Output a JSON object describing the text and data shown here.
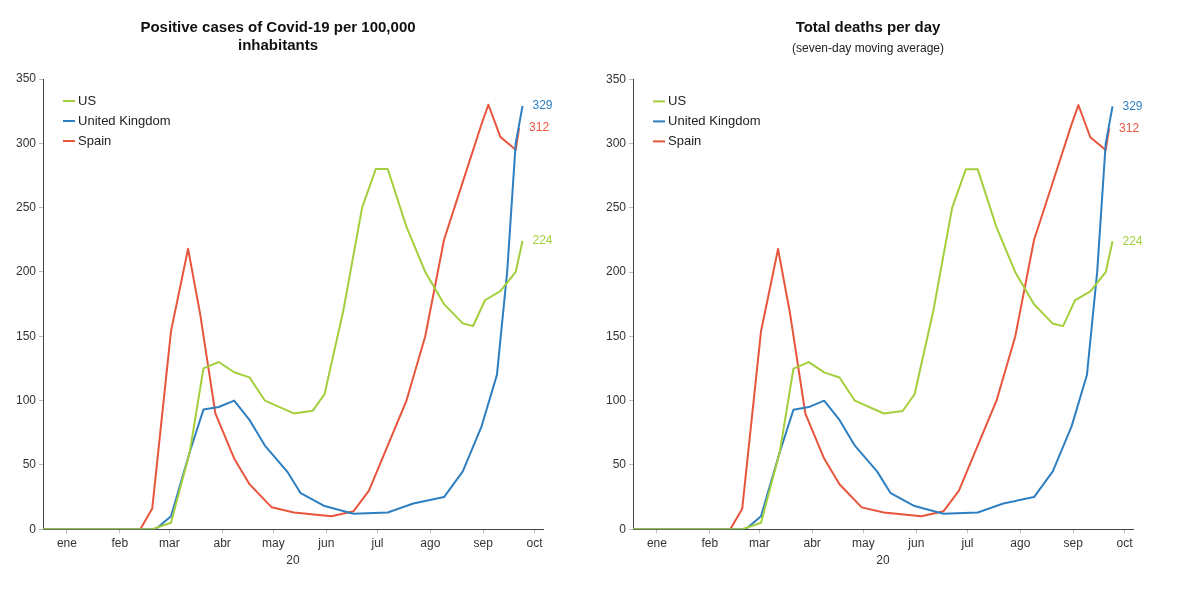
{
  "chart_data": [
    {
      "type": "line",
      "title": "Positive cases of Covid-19 per 100,000 inhabitants",
      "xlabel": "20",
      "xlim": [
        "--01-01",
        "--10-20"
      ],
      "xticks": [
        {
          "value": "--01-15",
          "label": "ene"
        },
        {
          "value": "--02-15",
          "label": "feb"
        },
        {
          "value": "--03-15",
          "label": "mar"
        },
        {
          "value": "--04-15",
          "label": "abr"
        },
        {
          "value": "--05-15",
          "label": "may"
        },
        {
          "value": "--06-15",
          "label": "jun"
        },
        {
          "value": "--07-15",
          "label": "jul"
        },
        {
          "value": "--08-15",
          "label": "ago"
        },
        {
          "value": "--09-15",
          "label": "sep"
        },
        {
          "value": "--10-15",
          "label": "oct"
        }
      ],
      "ylim": [
        0,
        350
      ],
      "yticks": [
        0,
        50,
        100,
        150,
        200,
        250,
        300,
        350
      ],
      "grid": false,
      "legend": "top left",
      "marker": "none",
      "line_style": "solid",
      "series": [
        {
          "name": "US",
          "color": "#a3cf3c",
          "x": [
            "--01-01",
            "--03-05",
            "--03-16",
            "--03-27",
            "--04-04",
            "--04-13",
            "--04-22",
            "--05-01",
            "--05-10",
            "--05-27",
            "--06-07",
            "--06-14",
            "--06-25",
            "--07-06",
            "--07-14",
            "--07-21",
            "--08-01",
            "--08-12",
            "--08-23",
            "--09-03",
            "--09-09",
            "--09-16",
            "--09-25",
            "--10-04",
            "--10-08"
          ],
          "values": [
            0,
            0,
            5,
            60,
            125,
            130,
            122,
            118,
            100,
            90,
            92,
            105,
            170,
            250,
            280,
            280,
            235,
            200,
            175,
            160,
            158,
            178,
            185,
            200,
            224
          ],
          "value_labels": [
            null,
            null,
            null,
            null,
            null,
            null,
            null,
            null,
            null,
            null,
            null,
            null,
            null,
            null,
            null,
            null,
            null,
            null,
            null,
            null,
            null,
            null,
            null,
            null,
            "224"
          ]
        },
        {
          "name": "United Kingdom",
          "color": "#2e7fc1",
          "x": [
            "--01-01",
            "--03-07",
            "--03-16",
            "--03-27",
            "--04-04",
            "--04-13",
            "--04-22",
            "--05-01",
            "--05-10",
            "--05-23",
            "--05-31",
            "--06-14",
            "--07-01",
            "--07-21",
            "--08-05",
            "--08-23",
            "--09-03",
            "--09-14",
            "--09-23",
            "--09-29",
            "--10-04",
            "--10-08"
          ],
          "values": [
            0,
            0,
            10,
            60,
            93,
            95,
            100,
            85,
            65,
            45,
            28,
            18,
            12,
            13,
            20,
            25,
            45,
            80,
            120,
            200,
            300,
            329
          ],
          "value_labels": [
            null,
            null,
            null,
            null,
            null,
            null,
            null,
            null,
            null,
            null,
            null,
            null,
            null,
            null,
            null,
            null,
            null,
            null,
            null,
            null,
            null,
            "329"
          ]
        },
        {
          "name": "Spain",
          "color": "#e8553d",
          "x": [
            "--01-01",
            "--02-27",
            "--03-05",
            "--03-16",
            "--03-26",
            "--04-02",
            "--04-11",
            "--04-22",
            "--05-01",
            "--05-14",
            "--05-27",
            "--06-18",
            "--07-01",
            "--07-10",
            "--07-21",
            "--08-01",
            "--08-12",
            "--08-23",
            "--09-03",
            "--09-14",
            "--09-18",
            "--09-25",
            "--10-04",
            "--10-06"
          ],
          "values": [
            0,
            0,
            16,
            154,
            218,
            168,
            90,
            55,
            35,
            17,
            13,
            10,
            14,
            30,
            65,
            100,
            150,
            225,
            270,
            315,
            330,
            305,
            295,
            312
          ],
          "value_labels": [
            null,
            null,
            null,
            null,
            null,
            null,
            null,
            null,
            null,
            null,
            null,
            null,
            null,
            null,
            null,
            null,
            null,
            null,
            null,
            null,
            null,
            null,
            null,
            "312"
          ]
        }
      ]
    },
    {
      "type": "line",
      "title": "Total deaths per day",
      "subtitle": "(seven-day moving average)",
      "xlabel": "20",
      "xlim": [
        "--01-01",
        "--10-20"
      ],
      "xticks": [
        {
          "value": "--01-15",
          "label": "ene"
        },
        {
          "value": "--02-15",
          "label": "feb"
        },
        {
          "value": "--03-15",
          "label": "mar"
        },
        {
          "value": "--04-15",
          "label": "abr"
        },
        {
          "value": "--05-15",
          "label": "may"
        },
        {
          "value": "--06-15",
          "label": "jun"
        },
        {
          "value": "--07-15",
          "label": "jul"
        },
        {
          "value": "--08-15",
          "label": "ago"
        },
        {
          "value": "--09-15",
          "label": "sep"
        },
        {
          "value": "--10-15",
          "label": "oct"
        }
      ],
      "ylim": [
        0,
        350
      ],
      "yticks": [
        0,
        50,
        100,
        150,
        200,
        250,
        300,
        350
      ],
      "grid": false,
      "legend": "top left",
      "marker": "none",
      "line_style": "solid",
      "series": [
        {
          "name": "US",
          "color": "#a3cf3c",
          "x": [
            "--01-01",
            "--03-05",
            "--03-16",
            "--03-27",
            "--04-04",
            "--04-13",
            "--04-22",
            "--05-01",
            "--05-10",
            "--05-27",
            "--06-07",
            "--06-14",
            "--06-25",
            "--07-06",
            "--07-14",
            "--07-21",
            "--08-01",
            "--08-12",
            "--08-23",
            "--09-03",
            "--09-09",
            "--09-16",
            "--09-25",
            "--10-04",
            "--10-08"
          ],
          "values": [
            0,
            0,
            5,
            60,
            125,
            130,
            122,
            118,
            100,
            90,
            92,
            105,
            170,
            250,
            280,
            280,
            235,
            200,
            175,
            160,
            158,
            178,
            185,
            200,
            224
          ],
          "value_labels": [
            null,
            null,
            null,
            null,
            null,
            null,
            null,
            null,
            null,
            null,
            null,
            null,
            null,
            null,
            null,
            null,
            null,
            null,
            null,
            null,
            null,
            null,
            null,
            null,
            "224"
          ]
        },
        {
          "name": "United Kingdom",
          "color": "#2e7fc1",
          "x": [
            "--01-01",
            "--03-07",
            "--03-16",
            "--03-27",
            "--04-04",
            "--04-13",
            "--04-22",
            "--05-01",
            "--05-10",
            "--05-23",
            "--05-31",
            "--06-14",
            "--07-01",
            "--07-21",
            "--08-05",
            "--08-23",
            "--09-03",
            "--09-14",
            "--09-23",
            "--09-29",
            "--10-04",
            "--10-08"
          ],
          "values": [
            0,
            0,
            10,
            60,
            93,
            95,
            100,
            85,
            65,
            45,
            28,
            18,
            12,
            13,
            20,
            25,
            45,
            80,
            120,
            200,
            300,
            329
          ],
          "value_labels": [
            null,
            null,
            null,
            null,
            null,
            null,
            null,
            null,
            null,
            null,
            null,
            null,
            null,
            null,
            null,
            null,
            null,
            null,
            null,
            null,
            null,
            "329"
          ]
        },
        {
          "name": "Spain",
          "color": "#e8553d",
          "x": [
            "--01-01",
            "--02-27",
            "--03-05",
            "--03-16",
            "--03-26",
            "--04-02",
            "--04-11",
            "--04-22",
            "--05-01",
            "--05-14",
            "--05-27",
            "--06-18",
            "--07-01",
            "--07-10",
            "--07-21",
            "--08-01",
            "--08-12",
            "--08-23",
            "--09-03",
            "--09-14",
            "--09-18",
            "--09-25",
            "--10-04",
            "--10-06"
          ],
          "values": [
            0,
            0,
            16,
            154,
            218,
            168,
            90,
            55,
            35,
            17,
            13,
            10,
            14,
            30,
            65,
            100,
            150,
            225,
            270,
            315,
            330,
            305,
            295,
            312
          ],
          "value_labels": [
            null,
            null,
            null,
            null,
            null,
            null,
            null,
            null,
            null,
            null,
            null,
            null,
            null,
            null,
            null,
            null,
            null,
            null,
            null,
            null,
            null,
            null,
            null,
            "312"
          ]
        }
      ]
    }
  ]
}
